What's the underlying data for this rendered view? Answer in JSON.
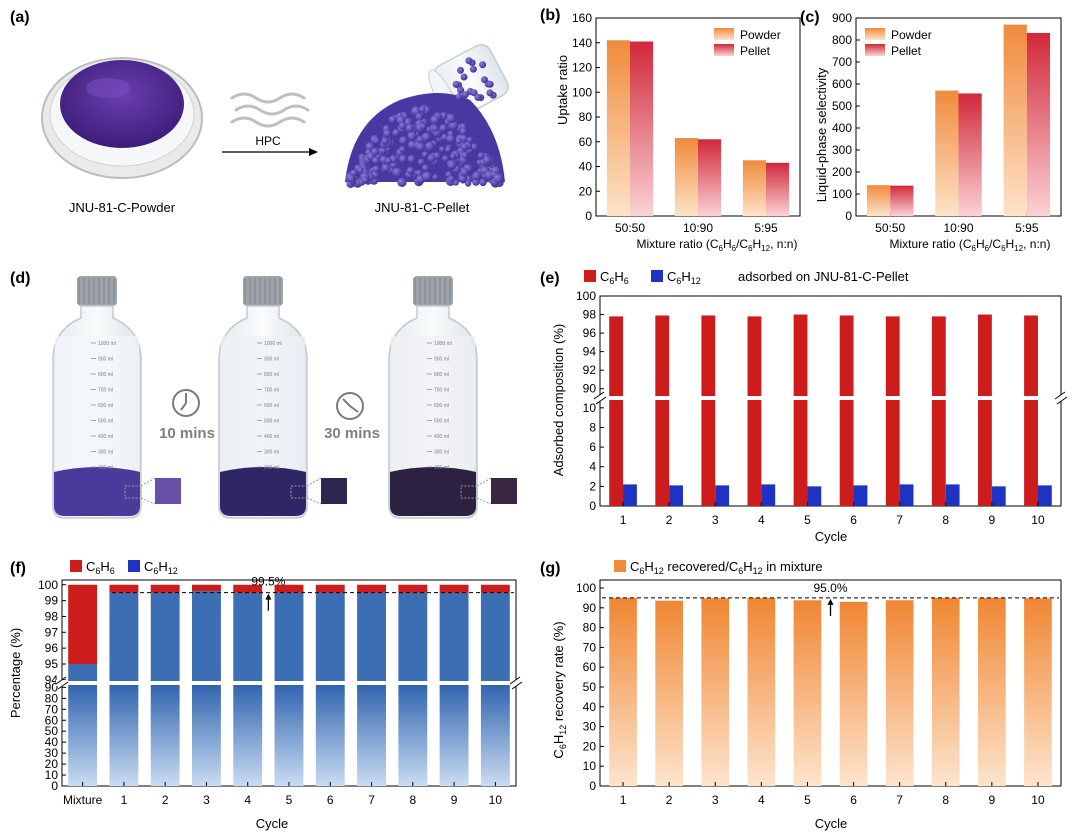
{
  "panels": {
    "a": {
      "label": "(a)",
      "caption_left": "JNU-81-C-Powder",
      "caption_right": "JNU-81-C-Pellet",
      "arrow_label": "HPC"
    },
    "d": {
      "label": "(d)",
      "time1": "10 mins",
      "time2": "30 mins",
      "swatches": [
        "#6a4fa6",
        "#2e2550",
        "#3a2640"
      ],
      "bottle_marks": [
        "1000 ml",
        "900 ml",
        "800 ml",
        "700 ml",
        "600 ml",
        "500 ml",
        "400 ml",
        "300 ml",
        "200 ml"
      ]
    }
  },
  "colors": {
    "powder": "#f08a3c",
    "pellet": "#d0283a",
    "c6h6": "#cc1c1c",
    "c6h12": "#1e33c2",
    "blue_bar": "#3c6eb4",
    "orange_bar": "#f08c3c"
  },
  "chart_data": [
    {
      "id": "b",
      "label": "(b)",
      "type": "bar",
      "categories": [
        "50:50",
        "10:90",
        "5:95"
      ],
      "series": [
        {
          "name": "Powder",
          "values": [
            142,
            63,
            45
          ]
        },
        {
          "name": "Pellet",
          "values": [
            141,
            62,
            43
          ]
        }
      ],
      "ylabel": "Uptake ratio",
      "xlabel": "Mixture ratio (C6H6/C6H12, n:n)",
      "ylim": [
        0,
        160
      ],
      "yticks": [
        0,
        20,
        40,
        60,
        80,
        100,
        120,
        140,
        160
      ],
      "legend": "top-right"
    },
    {
      "id": "c",
      "label": "(c)",
      "type": "bar",
      "categories": [
        "50:50",
        "10:90",
        "5:95"
      ],
      "series": [
        {
          "name": "Powder",
          "values": [
            140,
            570,
            870
          ]
        },
        {
          "name": "Pellet",
          "values": [
            138,
            557,
            832
          ]
        }
      ],
      "ylabel": "Liquid-phase selectivity",
      "xlabel": "Mixture ratio (C6H6/C6H12, n:n)",
      "ylim": [
        0,
        900
      ],
      "yticks": [
        0,
        100,
        200,
        300,
        400,
        500,
        600,
        700,
        800,
        900
      ],
      "legend": "top-left"
    },
    {
      "id": "e",
      "label": "(e)",
      "type": "bar",
      "categories": [
        "1",
        "2",
        "3",
        "4",
        "5",
        "6",
        "7",
        "8",
        "9",
        "10"
      ],
      "series": [
        {
          "name": "C6H6",
          "values": [
            97.8,
            97.9,
            97.9,
            97.8,
            98.0,
            97.9,
            97.8,
            97.8,
            98.0,
            97.9
          ]
        },
        {
          "name": "C6H12",
          "values": [
            2.2,
            2.1,
            2.1,
            2.2,
            2.0,
            2.1,
            2.2,
            2.2,
            2.0,
            2.1
          ]
        }
      ],
      "legend_suffix": "adsorbed on JNU-81-C-Pellet",
      "ylabel": "Adsorbed composition (%)",
      "xlabel": "Cycle",
      "y_break": {
        "lower": [
          0,
          11
        ],
        "upper": [
          89,
          100
        ]
      },
      "yticks_lower": [
        0,
        2,
        4,
        6,
        8,
        10
      ],
      "yticks_upper": [
        90,
        92,
        94,
        96,
        98,
        100
      ]
    },
    {
      "id": "f",
      "label": "(f)",
      "type": "bar",
      "stacked": true,
      "categories": [
        "Mixture",
        "1",
        "2",
        "3",
        "4",
        "5",
        "6",
        "7",
        "8",
        "9",
        "10"
      ],
      "series": [
        {
          "name": "C6H12",
          "values": [
            95.0,
            99.5,
            99.5,
            99.6,
            99.5,
            99.5,
            99.5,
            99.5,
            99.5,
            99.5,
            99.5
          ]
        },
        {
          "name": "C6H6",
          "values": [
            5.0,
            0.5,
            0.5,
            0.4,
            0.5,
            0.5,
            0.5,
            0.5,
            0.5,
            0.5,
            0.5
          ]
        }
      ],
      "ylabel": "Percentage (%)",
      "xlabel": "Cycle",
      "y_break": {
        "lower": [
          0,
          94
        ],
        "upper": [
          93.8,
          100.3
        ]
      },
      "yticks_lower": [
        0,
        10,
        20,
        30,
        40,
        50,
        60,
        70,
        80,
        90
      ],
      "yticks_upper": [
        94,
        95,
        96,
        97,
        98,
        99,
        100
      ],
      "reference_line": 99.5,
      "reference_label": "99.5%",
      "reference_arrow_category": "4.5"
    },
    {
      "id": "g",
      "label": "(g)",
      "type": "bar",
      "categories": [
        "1",
        "2",
        "3",
        "4",
        "5",
        "6",
        "7",
        "8",
        "9",
        "10"
      ],
      "series": [
        {
          "name": "C6H12 recovered/C6H12 in mixture",
          "values": [
            95.0,
            93.6,
            94.8,
            95.0,
            93.8,
            93.0,
            93.8,
            95.0,
            95.0,
            94.8
          ]
        }
      ],
      "ylabel": "C6H12 recovery rate (%)",
      "xlabel": "Cycle",
      "ylim": [
        0,
        100
      ],
      "yticks": [
        0,
        10,
        20,
        30,
        40,
        50,
        60,
        70,
        80,
        90,
        100
      ],
      "reference_line": 95.0,
      "reference_label": "95.0%"
    }
  ]
}
